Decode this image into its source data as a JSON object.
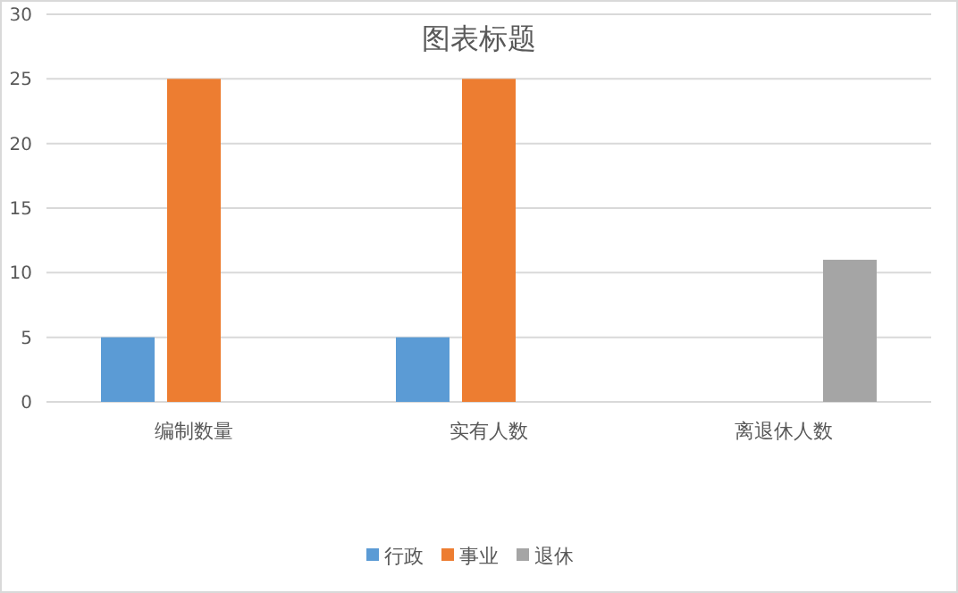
{
  "chart_data": {
    "type": "bar",
    "title": "图表标题",
    "categories": [
      "编制数量",
      "实有人数",
      "离退休人数"
    ],
    "series": [
      {
        "name": "行政",
        "color": "#5b9bd5",
        "values": [
          5,
          5,
          null
        ]
      },
      {
        "name": "事业",
        "color": "#ed7d31",
        "values": [
          25,
          25,
          null
        ]
      },
      {
        "name": "退休",
        "color": "#a5a5a5",
        "values": [
          null,
          null,
          11
        ]
      }
    ],
    "ylim": [
      0,
      30
    ],
    "yticks": [
      0,
      5,
      10,
      15,
      20,
      25,
      30
    ],
    "grid": "y",
    "legend": "bottom"
  }
}
